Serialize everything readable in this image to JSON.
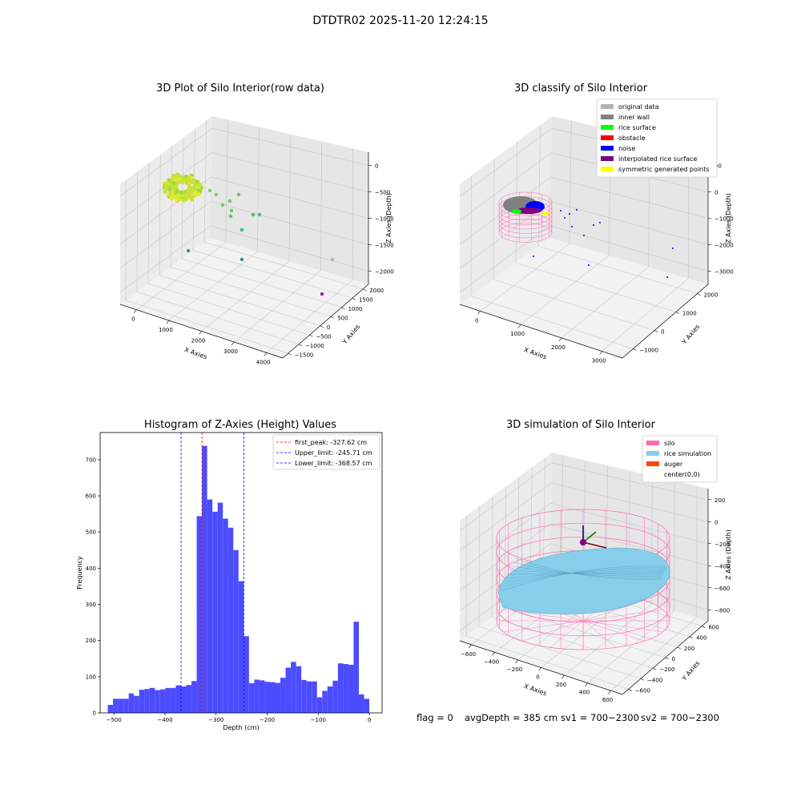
{
  "figure": {
    "suptitle": "DTDTR02 2025-11-20 12:24:15",
    "colors": {
      "pink": "#ff69b4",
      "skyblue": "#87ceeb",
      "hist_blue": "#4c4cff",
      "red": "#ff0000",
      "blue": "#0000ff",
      "green": "#00ff00",
      "purple": "#800080",
      "yellow": "#ffff00",
      "gray": "#b3b3b3",
      "darkgray": "#808080",
      "orangered": "#ff4500"
    }
  },
  "footer": {
    "flag": "flag = 0",
    "avg": "avgDepth = 385 cm",
    "sv1": "sv1 = 700~2300",
    "sv2": "sv2 = 700~2300"
  },
  "chart_data": [
    {
      "type": "scatter",
      "title": "3D Plot of Silo Interior(row data)",
      "xlabel": "X Axies",
      "ylabel": "Y Axies",
      "zlabel": "Z Axies (Depth)",
      "x_ticks": [
        "0",
        "1000",
        "2000",
        "3000",
        "4000"
      ],
      "y_ticks": [
        "−1500",
        "−1000",
        "−500",
        "0",
        "500",
        "1000",
        "1500",
        "2000"
      ],
      "z_ticks": [
        "−2000",
        "−1500",
        "−1000",
        "−500",
        "0"
      ],
      "colormap": "viridis"
    },
    {
      "type": "scatter",
      "title": "3D classify of Silo Interior",
      "xlabel": "X Axies",
      "ylabel": "Y Axies",
      "zlabel": "Z Axies (Depth)",
      "x_ticks": [
        "0",
        "1000",
        "2000",
        "3000"
      ],
      "y_ticks": [
        "−1000",
        "0",
        "1000",
        "2000"
      ],
      "z_ticks": [
        "−3000",
        "−2000",
        "−1000",
        "0",
        "00"
      ],
      "legend": [
        {
          "label": "original data",
          "color": "#b3b3b3"
        },
        {
          "label": "inner wall",
          "color": "#808080"
        },
        {
          "label": "rice surface",
          "color": "#00ff00"
        },
        {
          "label": "obstacle",
          "color": "#ff0000"
        },
        {
          "label": "noise",
          "color": "#0000ff"
        },
        {
          "label": "interpolated rice surface",
          "color": "#800080"
        },
        {
          "label": "symmetric generated points",
          "color": "#ffff00"
        }
      ]
    },
    {
      "type": "bar",
      "title": "Histogram of Z-Axies (Height) Values",
      "xlabel": "Depth (cm)",
      "ylabel": "Frequency",
      "xlim": [
        -527,
        25
      ],
      "ylim": [
        0,
        775
      ],
      "x_ticks": [
        -500,
        -400,
        -300,
        -200,
        -100,
        0
      ],
      "x_tick_labels": [
        "−500",
        "−400",
        "−300",
        "−200",
        "−100",
        "0"
      ],
      "y_ticks": [
        0,
        100,
        200,
        300,
        400,
        500,
        600,
        700
      ],
      "bin_start": -512,
      "bin_width": 10.24,
      "values": [
        22,
        39,
        39,
        39,
        54,
        47,
        64,
        66,
        69,
        63,
        65,
        69,
        69,
        76,
        73,
        77,
        88,
        544,
        738,
        590,
        556,
        581,
        537,
        512,
        450,
        364,
        212,
        82,
        92,
        90,
        86,
        85,
        83,
        97,
        125,
        141,
        129,
        91,
        87,
        87,
        43,
        61,
        73,
        89,
        137,
        135,
        133,
        252,
        51,
        39
      ],
      "lines": [
        {
          "label": "first_peak: -327.62 cm",
          "x": -327.62,
          "color": "#ff0000"
        },
        {
          "label": "Upper_limit: -245.71 cm",
          "x": -245.71,
          "color": "#0000ff"
        },
        {
          "label": "Lower_limit: -368.57 cm",
          "x": -368.57,
          "color": "#0000ff"
        }
      ]
    },
    {
      "type": "scatter",
      "title": "3D simulation of Silo Interior",
      "xlabel": "X Axies",
      "ylabel": "Y Axies",
      "zlabel": "Z Axies (Depth)",
      "x_ticks": [
        "−600",
        "−400",
        "−200",
        "0",
        "200",
        "400",
        "600"
      ],
      "y_ticks": [
        "−600",
        "−400",
        "−200",
        "0",
        "200",
        "400",
        "600"
      ],
      "z_ticks": [
        "−800",
        "−600",
        "−400",
        "−200",
        "0",
        "200"
      ],
      "legend": [
        {
          "label": "silo",
          "color": "#ff69b4"
        },
        {
          "label": "rice simulation",
          "color": "#87ceeb"
        },
        {
          "label": "auger",
          "color": "#ff4500"
        },
        {
          "label": "center(0,0)",
          "color": ""
        }
      ]
    }
  ]
}
